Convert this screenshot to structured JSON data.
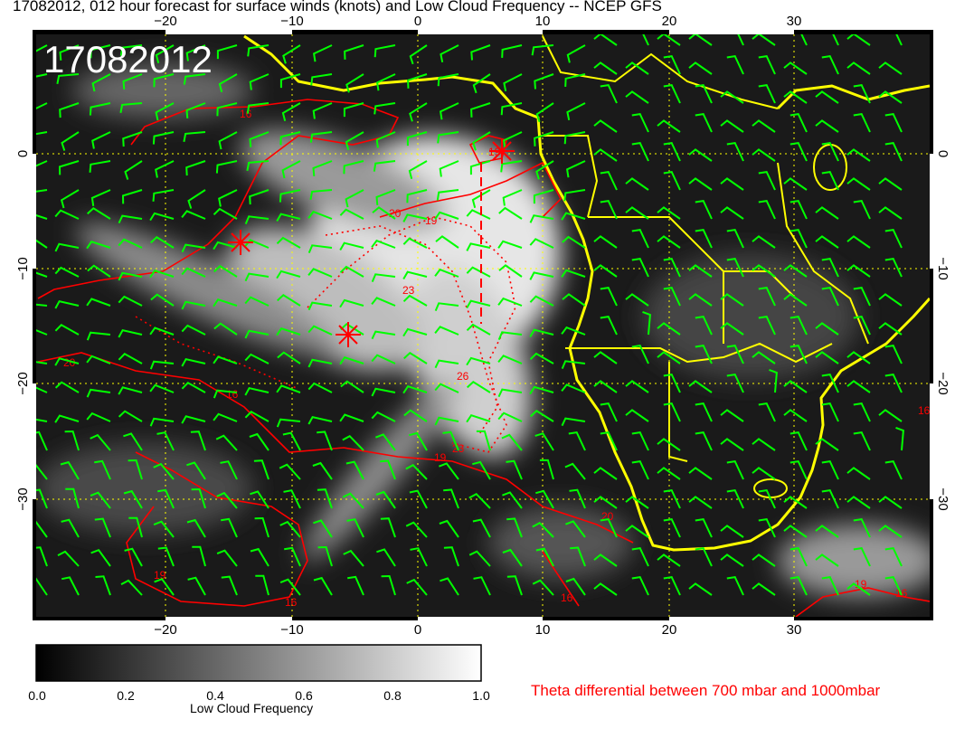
{
  "title": "17082012, 012 hour forecast for surface winds (knots) and Low Cloud Frequency -- NCEP GFS",
  "stamp": "17082012",
  "map": {
    "lon_range": [
      -30,
      40
    ],
    "lat_range": [
      -40,
      10
    ],
    "lon_ticks": [
      "−20",
      "−10",
      "0",
      "10",
      "20",
      "30"
    ],
    "lat_ticks": [
      "0",
      "−10",
      "−20",
      "−30"
    ],
    "coastline_color": "#ffff00",
    "wind_barb_color": "#00ff00",
    "contour_color": "#ff0000",
    "grid_color": "#ffff00",
    "contour_labels": [
      "16",
      "19",
      "20",
      "19",
      "23",
      "26",
      "23",
      "19",
      "20",
      "16",
      "16",
      "19",
      "16",
      "20",
      "16",
      "19",
      "16"
    ]
  },
  "colorbar": {
    "label": "Low Cloud Frequency",
    "ticks": [
      "0.0",
      "0.2",
      "0.4",
      "0.6",
      "0.8",
      "1.0"
    ],
    "range": [
      0.0,
      1.0
    ]
  },
  "contour_legend": "Theta differential between 700 mbar and 1000mbar"
}
